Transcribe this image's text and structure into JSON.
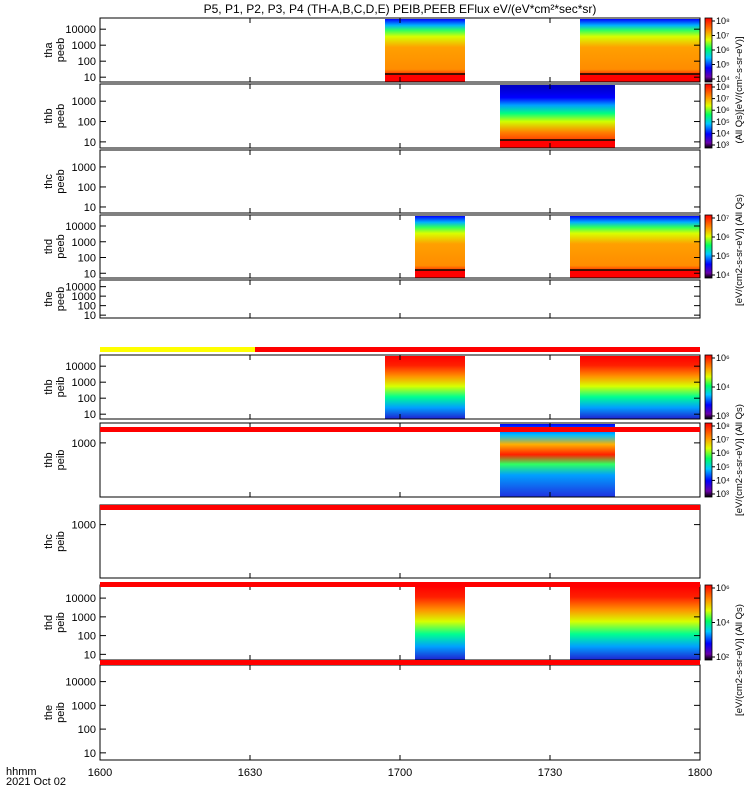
{
  "title": "P5, P1, P2, P3, P4 (TH-A,B,C,D,E) PEIB,PEEB EFlux eV/(eV*cm²*sec*sr)",
  "xaxis": {
    "label_line1": "hhmm",
    "label_line2": "2021 Oct 02"
  },
  "colors": {
    "flag_red": "#ff0000",
    "flag_yellow": "#ffff00",
    "bg": "#ffffff"
  },
  "chart_data": {
    "type": "heatmap",
    "x_ticks": [
      "1600",
      "1630",
      "1700",
      "1730",
      "1800"
    ],
    "x_range": [
      "16:00",
      "18:00"
    ],
    "panels": [
      {
        "probe": "tha",
        "ylabel": [
          "tha",
          "peeb"
        ],
        "yticks": [
          "10",
          "100",
          "1000",
          "10000"
        ],
        "ylim": [
          5,
          50000
        ],
        "segments": [
          [
            "16:57",
            "17:13"
          ],
          [
            "17:36",
            "18:00"
          ]
        ],
        "palette": "electron",
        "colorbar": {
          "ticks": [
            "10⁴",
            "10⁵",
            "10⁶",
            "10⁷",
            "10⁸"
          ]
        }
      },
      {
        "probe": "thb",
        "ylabel": [
          "thb",
          "peeb"
        ],
        "yticks": [
          "10",
          "100",
          "1000"
        ],
        "ylim": [
          5,
          7000
        ],
        "segments": [
          [
            "17:20",
            "17:43"
          ]
        ],
        "palette": "electron_thb",
        "colorbar": {
          "ticks": [
            "10³",
            "10⁴",
            "10⁵",
            "10⁶",
            "10⁷",
            "10⁸"
          ]
        }
      },
      {
        "probe": "thc",
        "ylabel": [
          "thc",
          "peeb"
        ],
        "yticks": [
          "10",
          "100",
          "1000"
        ],
        "ylim": [
          5,
          7000
        ],
        "segments": [],
        "palette": "none",
        "colorbar": null
      },
      {
        "probe": "thd",
        "ylabel": [
          "thd",
          "peeb"
        ],
        "yticks": [
          "10",
          "100",
          "1000",
          "10000"
        ],
        "ylim": [
          5,
          50000
        ],
        "segments": [
          [
            "17:03",
            "17:13"
          ],
          [
            "17:34",
            "18:00"
          ]
        ],
        "palette": "electron",
        "colorbar": {
          "ticks": [
            "10⁴",
            "10⁵",
            "10⁶",
            "10⁷"
          ]
        }
      },
      {
        "probe": "the",
        "ylabel": [
          "the",
          "peeb"
        ],
        "yticks": [
          "10",
          "100",
          "1000",
          "10000"
        ],
        "ylim": [
          5,
          50000
        ],
        "segments": [],
        "palette": "none",
        "colorbar": null
      },
      {
        "probe": "thb",
        "ylabel": [
          "thb",
          "peib"
        ],
        "yticks": [
          "10",
          "100",
          "1000",
          "10000"
        ],
        "ylim": [
          5,
          50000
        ],
        "segments": [
          [
            "16:57",
            "17:13"
          ],
          [
            "17:36",
            "18:00"
          ]
        ],
        "palette": "ion",
        "colorbar": {
          "ticks": [
            "10³",
            "10⁴",
            "10⁶"
          ]
        }
      },
      {
        "probe": "thb",
        "ylabel": [
          "thb",
          "peib"
        ],
        "yticks": [
          "1000"
        ],
        "ylim": [
          5,
          7000
        ],
        "segments": [
          [
            "17:20",
            "17:43"
          ]
        ],
        "palette": "ion_thb",
        "colorbar": {
          "ticks": [
            "10³",
            "10⁴",
            "10⁵",
            "10⁶",
            "10⁷",
            "10⁸"
          ]
        }
      },
      {
        "probe": "thc",
        "ylabel": [
          "thc",
          "peib"
        ],
        "yticks": [
          "1000"
        ],
        "ylim": [
          5,
          7000
        ],
        "segments": [],
        "palette": "none",
        "colorbar": null
      },
      {
        "probe": "thd",
        "ylabel": [
          "thd",
          "peib"
        ],
        "yticks": [
          "10",
          "100",
          "1000",
          "10000"
        ],
        "ylim": [
          5,
          50000
        ],
        "segments": [
          [
            "17:03",
            "17:13"
          ],
          [
            "17:34",
            "18:00"
          ]
        ],
        "palette": "ion",
        "colorbar": {
          "ticks": [
            "10²",
            "10⁴",
            "10⁶"
          ]
        }
      },
      {
        "probe": "the",
        "ylabel": [
          "the",
          "peib"
        ],
        "yticks": [
          "10",
          "100",
          "1000",
          "10000"
        ],
        "ylim": [
          5,
          50000
        ],
        "segments": [],
        "palette": "none",
        "colorbar": null
      }
    ],
    "flag_bars": [
      {
        "after_panel": 5,
        "segments": [
          {
            "from": "16:00",
            "to": "16:31",
            "color": "yellow"
          },
          {
            "from": "16:31",
            "to": "18:00",
            "color": "red"
          }
        ]
      },
      {
        "after_panel": 6,
        "segments": [
          {
            "from": "16:00",
            "to": "18:00",
            "color": "red"
          }
        ]
      },
      {
        "after_panel": 7,
        "segments": [
          {
            "from": "16:00",
            "to": "18:00",
            "color": "red"
          }
        ]
      },
      {
        "after_panel": 8,
        "segments": [
          {
            "from": "16:00",
            "to": "18:00",
            "color": "red"
          }
        ]
      },
      {
        "after_panel": 9,
        "segments": [
          {
            "from": "16:00",
            "to": "18:00",
            "color": "red"
          }
        ]
      }
    ],
    "units_labels": [
      "(All Qs)[eV/(cm²-s-sr-eV)]",
      "[eV/(cm2-s-sr-eV)] (All Qs)",
      "[eV/(cm2-s-sr-eV)] (All Qs)",
      "[eV/(cm2-s-sr-eV)] (All Qs)"
    ]
  }
}
